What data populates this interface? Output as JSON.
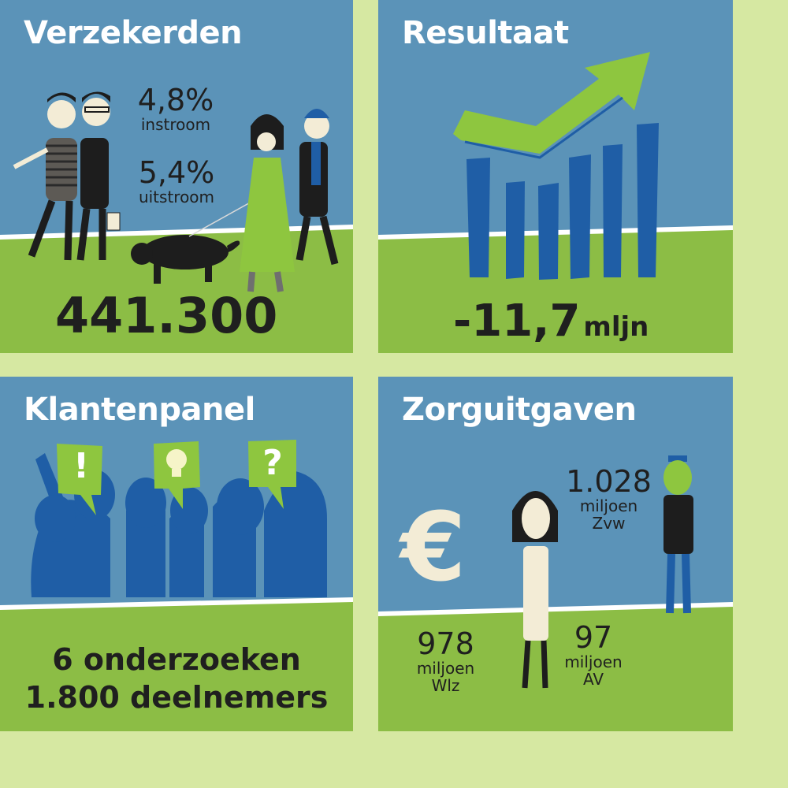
{
  "panels": {
    "verzekerden": {
      "title": "Verzekerden",
      "instroom_value": "4,8%",
      "instroom_label": "instroom",
      "uitstroom_value": "5,4%",
      "uitstroom_label": "uitstroom",
      "total": "441.300"
    },
    "resultaat": {
      "title": "Resultaat",
      "value": "-11,7",
      "unit": "mljn"
    },
    "klantenpanel": {
      "title": "Klantenpanel",
      "line1": "6 onderzoeken",
      "line2": "1.800 deelnemers",
      "bubble_exclaim": "!",
      "bubble_question": "?"
    },
    "zorguitgaven": {
      "title": "Zorguitgaven",
      "zvw_value": "1.028",
      "zvw_unit": "miljoen",
      "zvw_label": "Zvw",
      "wlz_value": "978",
      "wlz_unit": "miljoen",
      "wlz_label": "Wlz",
      "av_value": "97",
      "av_unit": "miljoen",
      "av_label": "AV",
      "euro_symbol": "€"
    }
  },
  "colors": {
    "background": "#d6e8a2",
    "panel_blue": "#5b93b8",
    "grass_green": "#8cbd45",
    "bar_blue": "#1f5ea6",
    "arrow_green": "#8ec63f",
    "text_dark": "#1f1f1f"
  }
}
